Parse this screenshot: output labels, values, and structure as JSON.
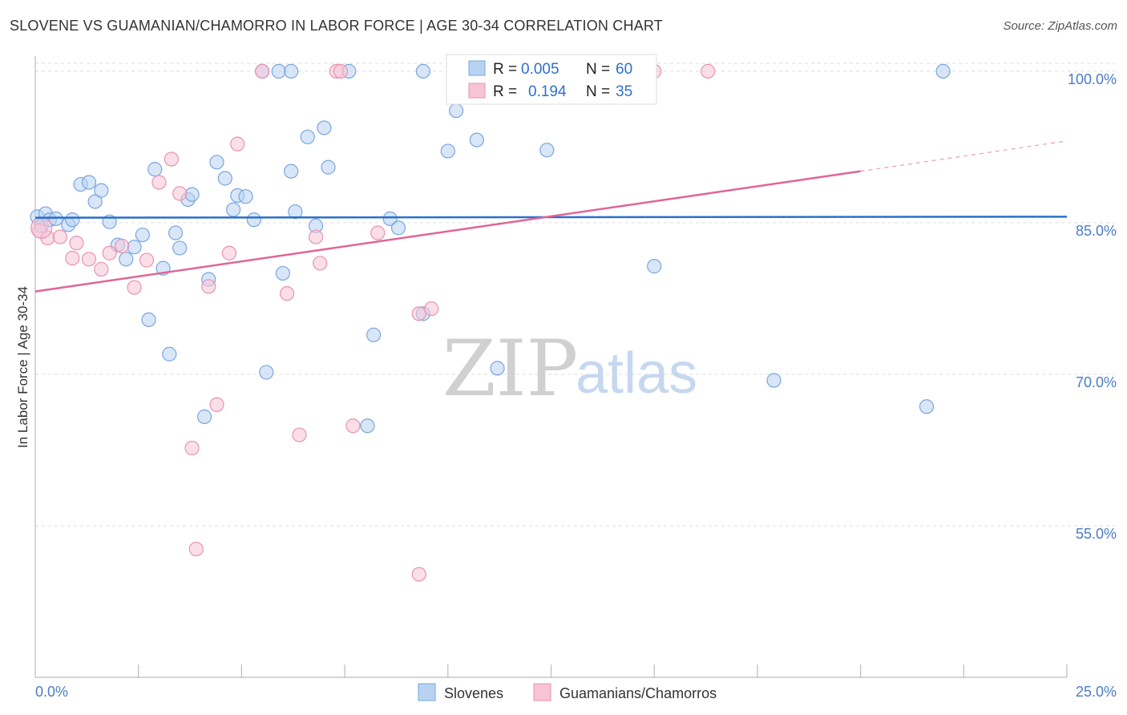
{
  "header": {
    "title": "SLOVENE VS GUAMANIAN/CHAMORRO IN LABOR FORCE | AGE 30-34 CORRELATION CHART",
    "source": "Source: ZipAtlas.com"
  },
  "watermark": {
    "zip": "ZIP",
    "atlas": "atlas"
  },
  "legend": {
    "rows": [
      {
        "r_label": "R =",
        "r_value": "0.005",
        "n_label": "N =",
        "n_value": "60"
      },
      {
        "r_label": "R =",
        "r_value": "0.194",
        "n_label": "N =",
        "n_value": "35"
      }
    ]
  },
  "bottom_legend": {
    "series_a": "Slovenes",
    "series_b": "Guamanians/Chamorros"
  },
  "colors": {
    "blue_fill": "#b8d2f2",
    "blue_stroke": "#7aa6dd",
    "blue_line": "#2a6fcc",
    "pink_fill": "#f7c4d6",
    "pink_stroke": "#e892b3",
    "pink_line": "#e06595",
    "grid": "#dddddd",
    "axis": "#bbbbbb",
    "tick_text": "#4a7cc7"
  },
  "chart_data": {
    "type": "scatter",
    "title": "SLOVENE VS GUAMANIAN/CHAMORRO IN LABOR FORCE | AGE 30-34 CORRELATION CHART",
    "xlabel": "",
    "ylabel": "In Labor Force | Age 30-34",
    "xlim": [
      0,
      25
    ],
    "ylim": [
      40,
      101.5
    ],
    "x_tick_labels": [
      "0.0%",
      "25.0%"
    ],
    "y_ticks": [
      55,
      70,
      85,
      100
    ],
    "y_tick_labels": [
      "55.0%",
      "70.0%",
      "85.0%",
      "100.0%"
    ],
    "grid": true,
    "series": [
      {
        "name": "Slovenes",
        "color": "#7aa6dd",
        "r": 0.005,
        "n": 60,
        "trend": {
          "x": [
            0,
            25
          ],
          "y": [
            85.5,
            85.6
          ],
          "extrapolated_from_x": null
        },
        "points": [
          [
            0.05,
            85.6
          ],
          [
            0.15,
            84.7
          ],
          [
            0.25,
            85.9
          ],
          [
            0.35,
            85.3
          ],
          [
            0.5,
            85.4
          ],
          [
            0.8,
            84.8
          ],
          [
            0.9,
            85.3
          ],
          [
            1.1,
            88.8
          ],
          [
            1.3,
            89.0
          ],
          [
            1.45,
            87.1
          ],
          [
            1.6,
            88.2
          ],
          [
            1.8,
            85.1
          ],
          [
            2.0,
            82.8
          ],
          [
            2.2,
            81.4
          ],
          [
            2.4,
            82.6
          ],
          [
            2.6,
            83.8
          ],
          [
            2.75,
            75.4
          ],
          [
            2.9,
            90.3
          ],
          [
            3.1,
            80.5
          ],
          [
            3.25,
            72.0
          ],
          [
            3.4,
            84.0
          ],
          [
            3.5,
            82.5
          ],
          [
            3.7,
            87.3
          ],
          [
            3.8,
            87.8
          ],
          [
            4.1,
            65.8
          ],
          [
            4.2,
            79.4
          ],
          [
            4.4,
            91.0
          ],
          [
            4.6,
            89.4
          ],
          [
            4.8,
            86.3
          ],
          [
            4.9,
            87.7
          ],
          [
            5.1,
            87.6
          ],
          [
            5.3,
            85.3
          ],
          [
            5.6,
            70.2
          ],
          [
            5.9,
            100.0
          ],
          [
            6.0,
            80.0
          ],
          [
            6.2,
            90.1
          ],
          [
            6.3,
            86.1
          ],
          [
            6.6,
            93.5
          ],
          [
            6.8,
            84.7
          ],
          [
            7.0,
            94.4
          ],
          [
            7.1,
            90.5
          ],
          [
            7.6,
            100.0
          ],
          [
            8.2,
            73.9
          ],
          [
            8.6,
            85.4
          ],
          [
            8.8,
            84.5
          ],
          [
            9.4,
            100.0
          ],
          [
            9.4,
            76.0
          ],
          [
            10.0,
            92.1
          ],
          [
            10.2,
            96.1
          ],
          [
            10.7,
            93.2
          ],
          [
            11.2,
            70.6
          ],
          [
            12.4,
            92.2
          ],
          [
            15.0,
            80.7
          ],
          [
            17.9,
            69.4
          ],
          [
            21.6,
            66.8
          ],
          [
            22.0,
            100.0
          ],
          [
            8.05,
            64.9
          ],
          [
            5.5,
            100.0
          ],
          [
            13.1,
            100.0
          ],
          [
            6.2,
            100.0
          ]
        ]
      },
      {
        "name": "Guamanians/Chamorros",
        "color": "#e892b3",
        "r": 0.194,
        "n": 35,
        "trend": {
          "x": [
            0,
            20
          ],
          "y": [
            78.2,
            90.1
          ],
          "extrapolated_to": [
            25,
            93.1
          ]
        },
        "points": [
          [
            0.1,
            84.2
          ],
          [
            0.3,
            83.5
          ],
          [
            0.6,
            83.6
          ],
          [
            0.9,
            81.5
          ],
          [
            1.0,
            83.0
          ],
          [
            1.3,
            81.4
          ],
          [
            1.6,
            80.4
          ],
          [
            1.8,
            82.0
          ],
          [
            2.1,
            82.7
          ],
          [
            2.4,
            78.6
          ],
          [
            2.7,
            81.3
          ],
          [
            3.0,
            89.0
          ],
          [
            3.3,
            91.3
          ],
          [
            3.5,
            87.9
          ],
          [
            3.8,
            62.7
          ],
          [
            3.9,
            52.7
          ],
          [
            4.2,
            78.7
          ],
          [
            4.4,
            67.0
          ],
          [
            4.7,
            82.0
          ],
          [
            4.9,
            92.8
          ],
          [
            5.5,
            100.0
          ],
          [
            6.1,
            78.0
          ],
          [
            6.4,
            64.0
          ],
          [
            6.8,
            83.6
          ],
          [
            6.9,
            81.0
          ],
          [
            7.3,
            100.0
          ],
          [
            7.7,
            64.9
          ],
          [
            8.3,
            84.0
          ],
          [
            9.3,
            76.0
          ],
          [
            9.6,
            76.5
          ],
          [
            9.3,
            50.2
          ],
          [
            13.0,
            100.0
          ],
          [
            15.0,
            100.0
          ],
          [
            16.3,
            100.0
          ],
          [
            7.4,
            100.0
          ]
        ]
      }
    ]
  }
}
